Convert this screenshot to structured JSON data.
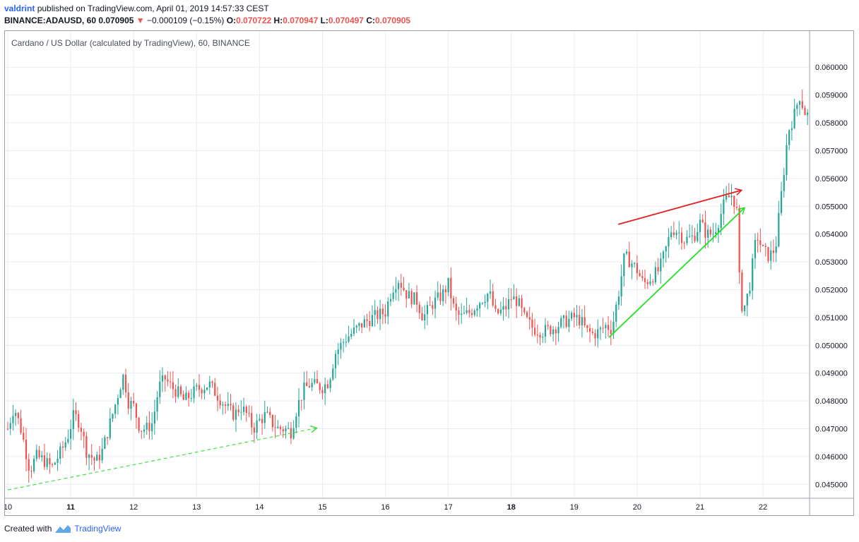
{
  "header": {
    "author": "valdrint",
    "published_text": "published on TradingView.com, April 01, 2019 14:57:33 CEST",
    "symbol": "BINANCE:ADAUSD, 60",
    "last_price": "0.070905",
    "change_arrow": "▼",
    "change": "−0.000109 (−0.15%)",
    "o_label": "O:",
    "o_value": "0.070722",
    "h_label": "H:",
    "h_value": "0.070947",
    "l_label": "L:",
    "l_value": "0.070497",
    "c_label": "C:",
    "c_value": "0.070905"
  },
  "footer": {
    "created_with": "Created with",
    "brand": "TradingView"
  },
  "colors": {
    "up": "#26a69a",
    "down": "#ef5350",
    "grid": "#e9edf3",
    "trend_red": "#e02020",
    "trend_green": "#22e022",
    "trend_dashed": "#44dd44"
  },
  "chart_data": {
    "type": "candlestick",
    "title": "Cardano / US Dollar (calculated by TradingView), 60, BINANCE",
    "y_ticks": [
      "0.060000",
      "0.059000",
      "0.058000",
      "0.057000",
      "0.056000",
      "0.055000",
      "0.054000",
      "0.053000",
      "0.052000",
      "0.051000",
      "0.050000",
      "0.049000",
      "0.048000",
      "0.047000",
      "0.046000",
      "0.045000"
    ],
    "x_ticks": [
      "10",
      "11",
      "12",
      "13",
      "14",
      "15",
      "16",
      "17",
      "18",
      "19",
      "20",
      "21",
      "22"
    ],
    "bold_x_ticks": [
      "11",
      "18"
    ],
    "ylim": [
      0.0445,
      0.0613
    ],
    "xlim": [
      10.0,
      22.74
    ],
    "grid": true,
    "series_anchor_points": [
      [
        10.0,
        0.047
      ],
      [
        10.1,
        0.0478
      ],
      [
        10.22,
        0.0469
      ],
      [
        10.35,
        0.0455
      ],
      [
        10.45,
        0.046
      ],
      [
        10.55,
        0.0459
      ],
      [
        10.7,
        0.0456
      ],
      [
        10.85,
        0.0462
      ],
      [
        10.95,
        0.0467
      ],
      [
        11.05,
        0.0475
      ],
      [
        11.15,
        0.0472
      ],
      [
        11.25,
        0.0462
      ],
      [
        11.4,
        0.0458
      ],
      [
        11.5,
        0.0462
      ],
      [
        11.6,
        0.047
      ],
      [
        11.7,
        0.0478
      ],
      [
        11.78,
        0.0485
      ],
      [
        11.85,
        0.049
      ],
      [
        11.9,
        0.048
      ],
      [
        12.0,
        0.0478
      ],
      [
        12.1,
        0.047
      ],
      [
        12.2,
        0.047
      ],
      [
        12.3,
        0.0472
      ],
      [
        12.4,
        0.0485
      ],
      [
        12.5,
        0.0488
      ],
      [
        12.6,
        0.0485
      ],
      [
        12.7,
        0.0483
      ],
      [
        12.8,
        0.048
      ],
      [
        12.9,
        0.0482
      ],
      [
        13.0,
        0.0484
      ],
      [
        13.1,
        0.0485
      ],
      [
        13.2,
        0.0486
      ],
      [
        13.3,
        0.0483
      ],
      [
        13.4,
        0.048
      ],
      [
        13.5,
        0.0477
      ],
      [
        13.6,
        0.0475
      ],
      [
        13.7,
        0.0478
      ],
      [
        13.8,
        0.0475
      ],
      [
        13.9,
        0.047
      ],
      [
        14.0,
        0.0473
      ],
      [
        14.1,
        0.0475
      ],
      [
        14.2,
        0.0472
      ],
      [
        14.3,
        0.047
      ],
      [
        14.4,
        0.047
      ],
      [
        14.5,
        0.0469
      ],
      [
        14.6,
        0.0478
      ],
      [
        14.7,
        0.0484
      ],
      [
        14.8,
        0.0486
      ],
      [
        15.0,
        0.0485
      ],
      [
        15.1,
        0.0487
      ],
      [
        15.2,
        0.0497
      ],
      [
        15.35,
        0.0502
      ],
      [
        15.5,
        0.0505
      ],
      [
        15.65,
        0.0508
      ],
      [
        15.8,
        0.051
      ],
      [
        16.0,
        0.0512
      ],
      [
        16.1,
        0.052
      ],
      [
        16.2,
        0.0524
      ],
      [
        16.35,
        0.0518
      ],
      [
        16.5,
        0.0516
      ],
      [
        16.6,
        0.051
      ],
      [
        16.75,
        0.0515
      ],
      [
        16.9,
        0.0518
      ],
      [
        17.0,
        0.0522
      ],
      [
        17.1,
        0.0512
      ],
      [
        17.2,
        0.051
      ],
      [
        17.35,
        0.0512
      ],
      [
        17.5,
        0.0516
      ],
      [
        17.65,
        0.0519
      ],
      [
        17.75,
        0.0511
      ],
      [
        17.9,
        0.0513
      ],
      [
        18.0,
        0.0517
      ],
      [
        18.1,
        0.0516
      ],
      [
        18.2,
        0.051
      ],
      [
        18.35,
        0.0506
      ],
      [
        18.5,
        0.0505
      ],
      [
        18.65,
        0.0506
      ],
      [
        18.8,
        0.0508
      ],
      [
        19.0,
        0.051
      ],
      [
        19.1,
        0.0509
      ],
      [
        19.2,
        0.0505
      ],
      [
        19.3,
        0.0504
      ],
      [
        19.4,
        0.0505
      ],
      [
        19.5,
        0.0507
      ],
      [
        19.6,
        0.0506
      ],
      [
        19.7,
        0.0518
      ],
      [
        19.8,
        0.0532
      ],
      [
        19.9,
        0.053
      ],
      [
        20.0,
        0.0527
      ],
      [
        20.1,
        0.0522
      ],
      [
        20.2,
        0.0524
      ],
      [
        20.35,
        0.0527
      ],
      [
        20.45,
        0.0534
      ],
      [
        20.55,
        0.0542
      ],
      [
        20.65,
        0.0541
      ],
      [
        20.75,
        0.0538
      ],
      [
        20.9,
        0.0539
      ],
      [
        21.0,
        0.0544
      ],
      [
        21.1,
        0.054
      ],
      [
        21.2,
        0.054
      ],
      [
        21.3,
        0.0545
      ],
      [
        21.4,
        0.0552
      ],
      [
        21.5,
        0.0554
      ],
      [
        21.58,
        0.055
      ],
      [
        21.63,
        0.0521
      ],
      [
        21.68,
        0.0512
      ],
      [
        21.78,
        0.052
      ],
      [
        21.9,
        0.054
      ],
      [
        22.0,
        0.0534
      ],
      [
        22.1,
        0.0532
      ],
      [
        22.2,
        0.0535
      ],
      [
        22.3,
        0.0556
      ],
      [
        22.4,
        0.0577
      ],
      [
        22.5,
        0.0583
      ],
      [
        22.58,
        0.059
      ],
      [
        22.66,
        0.0584
      ],
      [
        22.74,
        0.0582
      ]
    ],
    "annotations": [
      {
        "type": "arrow",
        "color": "red",
        "from": [
          19.7,
          0.05435
        ],
        "to": [
          21.65,
          0.05557
        ]
      },
      {
        "type": "arrow",
        "color": "green",
        "from": [
          19.55,
          0.05028
        ],
        "to": [
          21.7,
          0.05493
        ]
      },
      {
        "type": "dashed-arrow",
        "color": "green",
        "from": [
          10.0,
          0.0448
        ],
        "to": [
          14.9,
          0.04702
        ]
      }
    ]
  }
}
